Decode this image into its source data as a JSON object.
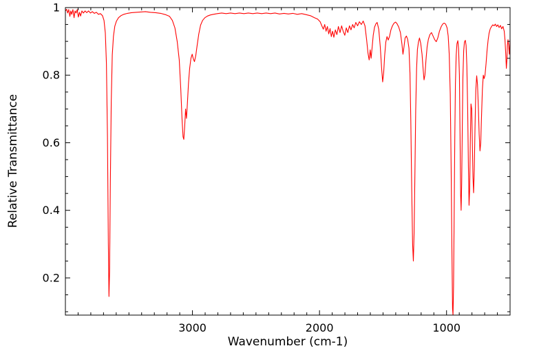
{
  "page": {
    "background": "#ffffff"
  },
  "chart_data": {
    "type": "line",
    "title": "",
    "xlabel": "Wavenumber (cm-1)",
    "ylabel": "Relative Transmittance",
    "grid": false,
    "legend": false,
    "x_axis": {
      "range": [
        4000,
        500
      ],
      "reversed": true,
      "major_ticks": [
        3000,
        2000,
        1000
      ],
      "major_tick_labels": [
        "3000",
        "2000",
        "1000"
      ],
      "minor_tick_step": 100
    },
    "y_axis": {
      "range": [
        0.09,
        1.0
      ],
      "major_ticks": [
        0.2,
        0.4,
        0.6,
        0.8,
        1.0
      ],
      "major_tick_labels": [
        "0.2",
        "0.4",
        "0.6",
        "0.8",
        "1"
      ],
      "minor_tick_step": 0.05
    },
    "series": [
      {
        "name": "ir-spectrum",
        "color": "#ff0000",
        "points": [
          [
            4000,
            0.99
          ],
          [
            3990,
            0.995
          ],
          [
            3982,
            0.984
          ],
          [
            3974,
            0.994
          ],
          [
            3965,
            0.974
          ],
          [
            3958,
            0.99
          ],
          [
            3950,
            0.98
          ],
          [
            3941,
            0.994
          ],
          [
            3932,
            0.97
          ],
          [
            3924,
            0.99
          ],
          [
            3916,
            0.984
          ],
          [
            3907,
            0.994
          ],
          [
            3898,
            0.972
          ],
          [
            3889,
            0.986
          ],
          [
            3880,
            0.975
          ],
          [
            3870,
            0.99
          ],
          [
            3858,
            0.984
          ],
          [
            3845,
            0.99
          ],
          [
            3832,
            0.985
          ],
          [
            3818,
            0.99
          ],
          [
            3803,
            0.984
          ],
          [
            3788,
            0.988
          ],
          [
            3772,
            0.983
          ],
          [
            3756,
            0.986
          ],
          [
            3740,
            0.98
          ],
          [
            3724,
            0.982
          ],
          [
            3708,
            0.976
          ],
          [
            3696,
            0.962
          ],
          [
            3686,
            0.925
          ],
          [
            3677,
            0.835
          ],
          [
            3669,
            0.62
          ],
          [
            3662,
            0.3
          ],
          [
            3657,
            0.145
          ],
          [
            3652,
            0.22
          ],
          [
            3646,
            0.48
          ],
          [
            3639,
            0.72
          ],
          [
            3631,
            0.86
          ],
          [
            3622,
            0.915
          ],
          [
            3611,
            0.945
          ],
          [
            3598,
            0.96
          ],
          [
            3582,
            0.97
          ],
          [
            3563,
            0.976
          ],
          [
            3540,
            0.98
          ],
          [
            3512,
            0.983
          ],
          [
            3480,
            0.985
          ],
          [
            3445,
            0.986
          ],
          [
            3408,
            0.987
          ],
          [
            3370,
            0.988
          ],
          [
            3330,
            0.986
          ],
          [
            3290,
            0.985
          ],
          [
            3250,
            0.983
          ],
          [
            3212,
            0.979
          ],
          [
            3180,
            0.974
          ],
          [
            3158,
            0.962
          ],
          [
            3138,
            0.94
          ],
          [
            3120,
            0.9
          ],
          [
            3104,
            0.845
          ],
          [
            3092,
            0.76
          ],
          [
            3082,
            0.672
          ],
          [
            3074,
            0.618
          ],
          [
            3068,
            0.61
          ],
          [
            3061,
            0.648
          ],
          [
            3054,
            0.7
          ],
          [
            3047,
            0.672
          ],
          [
            3040,
            0.715
          ],
          [
            3031,
            0.775
          ],
          [
            3022,
            0.82
          ],
          [
            3012,
            0.85
          ],
          [
            3002,
            0.862
          ],
          [
            2993,
            0.848
          ],
          [
            2984,
            0.84
          ],
          [
            2974,
            0.858
          ],
          [
            2963,
            0.888
          ],
          [
            2950,
            0.922
          ],
          [
            2936,
            0.948
          ],
          [
            2920,
            0.962
          ],
          [
            2902,
            0.97
          ],
          [
            2882,
            0.975
          ],
          [
            2860,
            0.978
          ],
          [
            2835,
            0.98
          ],
          [
            2805,
            0.982
          ],
          [
            2770,
            0.984
          ],
          [
            2735,
            0.982
          ],
          [
            2700,
            0.984
          ],
          [
            2665,
            0.982
          ],
          [
            2630,
            0.984
          ],
          [
            2595,
            0.982
          ],
          [
            2560,
            0.984
          ],
          [
            2525,
            0.982
          ],
          [
            2490,
            0.984
          ],
          [
            2455,
            0.982
          ],
          [
            2420,
            0.984
          ],
          [
            2385,
            0.982
          ],
          [
            2350,
            0.984
          ],
          [
            2315,
            0.981
          ],
          [
            2280,
            0.983
          ],
          [
            2245,
            0.981
          ],
          [
            2210,
            0.983
          ],
          [
            2175,
            0.98
          ],
          [
            2140,
            0.982
          ],
          [
            2105,
            0.979
          ],
          [
            2072,
            0.976
          ],
          [
            2040,
            0.97
          ],
          [
            2015,
            0.966
          ],
          [
            1995,
            0.958
          ],
          [
            1982,
            0.946
          ],
          [
            1970,
            0.936
          ],
          [
            1959,
            0.95
          ],
          [
            1948,
            0.93
          ],
          [
            1938,
            0.944
          ],
          [
            1927,
            0.922
          ],
          [
            1917,
            0.938
          ],
          [
            1907,
            0.914
          ],
          [
            1897,
            0.93
          ],
          [
            1887,
            0.912
          ],
          [
            1875,
            0.934
          ],
          [
            1863,
            0.92
          ],
          [
            1851,
            0.944
          ],
          [
            1838,
            0.926
          ],
          [
            1826,
            0.946
          ],
          [
            1814,
            0.93
          ],
          [
            1801,
            0.918
          ],
          [
            1789,
            0.94
          ],
          [
            1777,
            0.926
          ],
          [
            1764,
            0.946
          ],
          [
            1752,
            0.934
          ],
          [
            1739,
            0.95
          ],
          [
            1727,
            0.94
          ],
          [
            1714,
            0.956
          ],
          [
            1700,
            0.946
          ],
          [
            1686,
            0.958
          ],
          [
            1671,
            0.95
          ],
          [
            1656,
            0.96
          ],
          [
            1642,
            0.946
          ],
          [
            1629,
            0.905
          ],
          [
            1618,
            0.865
          ],
          [
            1609,
            0.845
          ],
          [
            1601,
            0.875
          ],
          [
            1594,
            0.85
          ],
          [
            1586,
            0.882
          ],
          [
            1577,
            0.918
          ],
          [
            1567,
            0.942
          ],
          [
            1556,
            0.952
          ],
          [
            1546,
            0.956
          ],
          [
            1534,
            0.936
          ],
          [
            1522,
            0.885
          ],
          [
            1511,
            0.82
          ],
          [
            1503,
            0.78
          ],
          [
            1495,
            0.808
          ],
          [
            1487,
            0.858
          ],
          [
            1478,
            0.898
          ],
          [
            1469,
            0.914
          ],
          [
            1459,
            0.904
          ],
          [
            1449,
            0.914
          ],
          [
            1438,
            0.934
          ],
          [
            1426,
            0.946
          ],
          [
            1413,
            0.954
          ],
          [
            1401,
            0.957
          ],
          [
            1389,
            0.952
          ],
          [
            1376,
            0.942
          ],
          [
            1363,
            0.926
          ],
          [
            1351,
            0.892
          ],
          [
            1343,
            0.862
          ],
          [
            1335,
            0.884
          ],
          [
            1326,
            0.91
          ],
          [
            1316,
            0.916
          ],
          [
            1306,
            0.906
          ],
          [
            1296,
            0.88
          ],
          [
            1288,
            0.805
          ],
          [
            1281,
            0.665
          ],
          [
            1274,
            0.465
          ],
          [
            1267,
            0.3
          ],
          [
            1261,
            0.25
          ],
          [
            1255,
            0.335
          ],
          [
            1249,
            0.515
          ],
          [
            1243,
            0.695
          ],
          [
            1236,
            0.82
          ],
          [
            1229,
            0.876
          ],
          [
            1221,
            0.898
          ],
          [
            1213,
            0.91
          ],
          [
            1203,
            0.894
          ],
          [
            1193,
            0.862
          ],
          [
            1184,
            0.815
          ],
          [
            1177,
            0.786
          ],
          [
            1170,
            0.8
          ],
          [
            1162,
            0.844
          ],
          [
            1153,
            0.884
          ],
          [
            1143,
            0.906
          ],
          [
            1131,
            0.92
          ],
          [
            1119,
            0.926
          ],
          [
            1106,
            0.916
          ],
          [
            1093,
            0.905
          ],
          [
            1081,
            0.899
          ],
          [
            1069,
            0.91
          ],
          [
            1056,
            0.93
          ],
          [
            1043,
            0.943
          ],
          [
            1031,
            0.951
          ],
          [
            1019,
            0.954
          ],
          [
            1007,
            0.951
          ],
          [
            996,
            0.94
          ],
          [
            987,
            0.916
          ],
          [
            979,
            0.862
          ],
          [
            971,
            0.745
          ],
          [
            964,
            0.525
          ],
          [
            958,
            0.285
          ],
          [
            953,
            0.11
          ],
          [
            949,
            0.09
          ],
          [
            945,
            0.175
          ],
          [
            940,
            0.395
          ],
          [
            935,
            0.615
          ],
          [
            930,
            0.775
          ],
          [
            924,
            0.858
          ],
          [
            918,
            0.893
          ],
          [
            911,
            0.902
          ],
          [
            905,
            0.878
          ],
          [
            899,
            0.8
          ],
          [
            894,
            0.625
          ],
          [
            889,
            0.445
          ],
          [
            885,
            0.4
          ],
          [
            881,
            0.48
          ],
          [
            876,
            0.648
          ],
          [
            871,
            0.795
          ],
          [
            865,
            0.872
          ],
          [
            859,
            0.898
          ],
          [
            852,
            0.903
          ],
          [
            846,
            0.888
          ],
          [
            840,
            0.828
          ],
          [
            834,
            0.7
          ],
          [
            828,
            0.525
          ],
          [
            823,
            0.415
          ],
          [
            818,
            0.462
          ],
          [
            813,
            0.598
          ],
          [
            808,
            0.715
          ],
          [
            802,
            0.7
          ],
          [
            797,
            0.6
          ],
          [
            792,
            0.498
          ],
          [
            787,
            0.452
          ],
          [
            782,
            0.52
          ],
          [
            776,
            0.648
          ],
          [
            770,
            0.755
          ],
          [
            763,
            0.798
          ],
          [
            756,
            0.772
          ],
          [
            749,
            0.7
          ],
          [
            743,
            0.625
          ],
          [
            737,
            0.576
          ],
          [
            731,
            0.6
          ],
          [
            725,
            0.678
          ],
          [
            718,
            0.758
          ],
          [
            711,
            0.8
          ],
          [
            704,
            0.79
          ],
          [
            697,
            0.8
          ],
          [
            689,
            0.834
          ],
          [
            681,
            0.874
          ],
          [
            673,
            0.904
          ],
          [
            665,
            0.924
          ],
          [
            656,
            0.937
          ],
          [
            646,
            0.944
          ],
          [
            636,
            0.949
          ],
          [
            626,
            0.946
          ],
          [
            616,
            0.951
          ],
          [
            606,
            0.944
          ],
          [
            596,
            0.949
          ],
          [
            586,
            0.941
          ],
          [
            576,
            0.947
          ],
          [
            566,
            0.937
          ],
          [
            556,
            0.944
          ],
          [
            546,
            0.93
          ],
          [
            540,
            0.905
          ],
          [
            534,
            0.862
          ],
          [
            529,
            0.82
          ],
          [
            525,
            0.845
          ],
          [
            521,
            0.888
          ],
          [
            516,
            0.905
          ],
          [
            511,
            0.885
          ],
          [
            506,
            0.862
          ],
          [
            503,
            0.88
          ],
          [
            500,
            0.905
          ]
        ]
      }
    ]
  }
}
